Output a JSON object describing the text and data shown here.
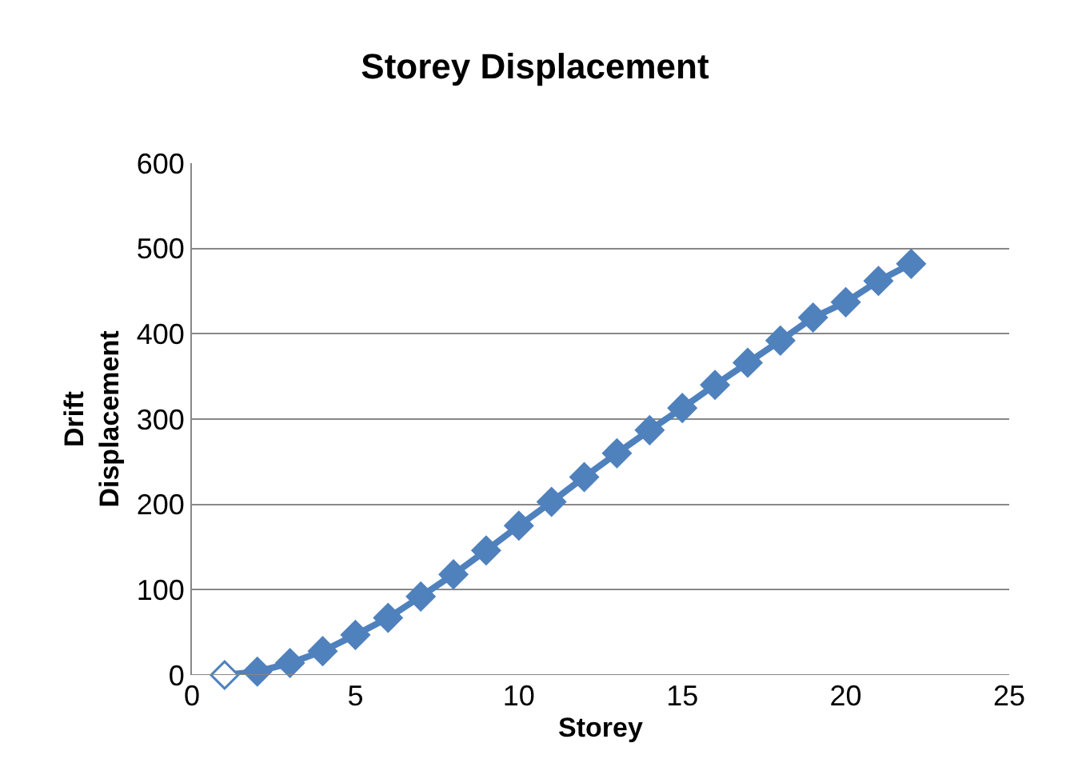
{
  "chart_data": {
    "type": "line",
    "title": "Storey Displacement",
    "xlabel": "Storey",
    "ylabel": "Drift\nDisplacement",
    "x": [
      1,
      2,
      3,
      4,
      5,
      6,
      7,
      8,
      9,
      10,
      11,
      12,
      13,
      14,
      15,
      16,
      17,
      18,
      19,
      20,
      21,
      22
    ],
    "series": [
      {
        "color": "#4f81bd",
        "values": [
          0,
          4,
          14,
          28,
          47,
          67,
          92,
          118,
          146,
          175,
          203,
          232,
          260,
          287,
          313,
          340,
          366,
          392,
          419,
          437,
          462,
          482
        ],
        "colors": [
          "#ffffff",
          "#4f81bd",
          "#4f81bd",
          "#4f81bd",
          "#4f81bd",
          "#4f81bd",
          "#4f81bd",
          "#4f81bd",
          "#4f81bd",
          "#4f81bd",
          "#4f81bd",
          "#4f81bd",
          "#4f81bd",
          "#4f81bd",
          "#4f81bd",
          "#4f81bd",
          "#4f81bd",
          "#4f81bd",
          "#4f81bd",
          "#4f81bd",
          "#4f81bd",
          "#4f81bd"
        ]
      }
    ],
    "xlim": [
      0,
      25
    ],
    "xticks": [
      0,
      5,
      10,
      15,
      20,
      25
    ],
    "ylim": [
      0,
      600
    ],
    "yticks": [
      0,
      100,
      200,
      300,
      400,
      500,
      600
    ],
    "grid": "y",
    "legend": false,
    "marker": "diamond",
    "line_style": "solid"
  }
}
